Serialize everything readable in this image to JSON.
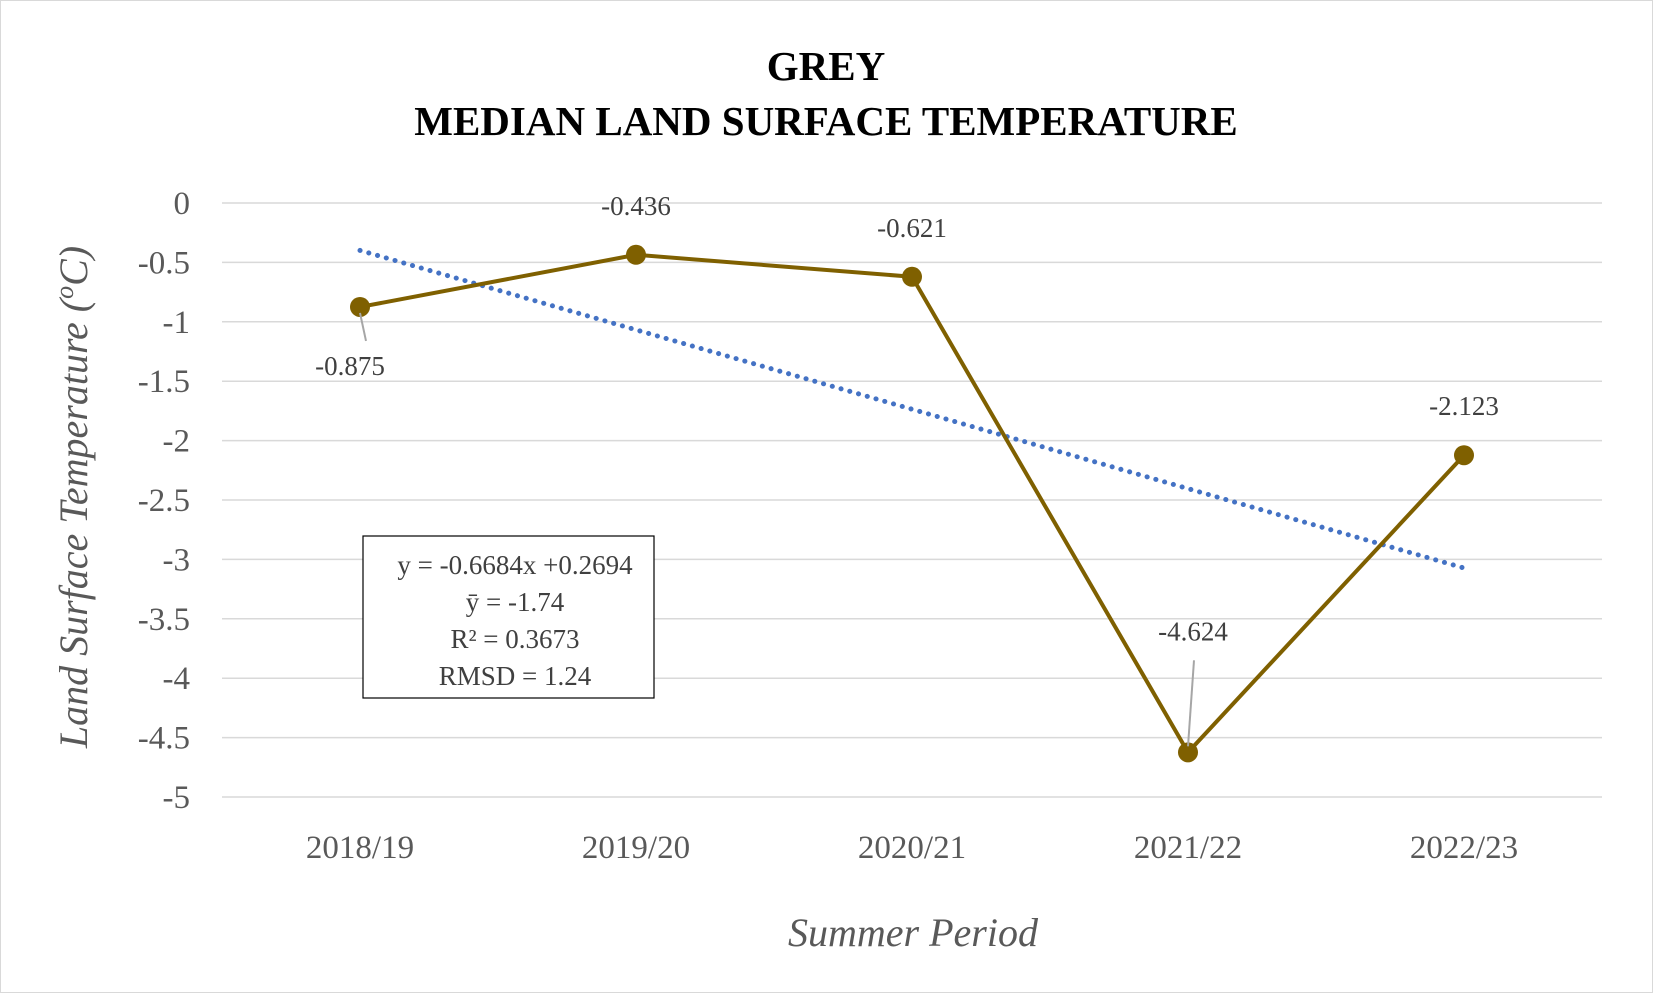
{
  "chart_data": {
    "type": "line",
    "title_lines": [
      "GREY",
      "MEDIAN LAND SURFACE TEMPERATURE"
    ],
    "xlabel": "Summer Period",
    "ylabel_main": "Land Surface Temperature (",
    "ylabel_sup": "o",
    "ylabel_end": "C)",
    "categories": [
      "2018/19",
      "2019/20",
      "2020/21",
      "2021/22",
      "2022/23"
    ],
    "series": [
      {
        "values": [
          -0.875,
          -0.436,
          -0.621,
          -4.624,
          -2.123
        ],
        "data_labels": [
          "-0.875",
          "-0.436",
          "-0.621",
          "-4.624",
          "-2.123"
        ],
        "color": "#7f6000"
      }
    ],
    "trendline": {
      "slope": -0.6684,
      "intercept": 0.2694,
      "color": "#4472c4",
      "style": "dotted"
    },
    "ylim": [
      -5,
      0
    ],
    "ytick_step": 0.5,
    "yticks": [
      "0",
      "-0.5",
      "-1",
      "-1.5",
      "-2",
      "-2.5",
      "-3",
      "-3.5",
      "-4",
      "-4.5",
      "-5"
    ],
    "grid": true,
    "gridline_color": "#d9d9d9",
    "stats_box": [
      "y = -0.6684x +0.2694",
      "ȳ = -1.74",
      "R² = 0.3673",
      "RMSD = 1.24"
    ]
  }
}
